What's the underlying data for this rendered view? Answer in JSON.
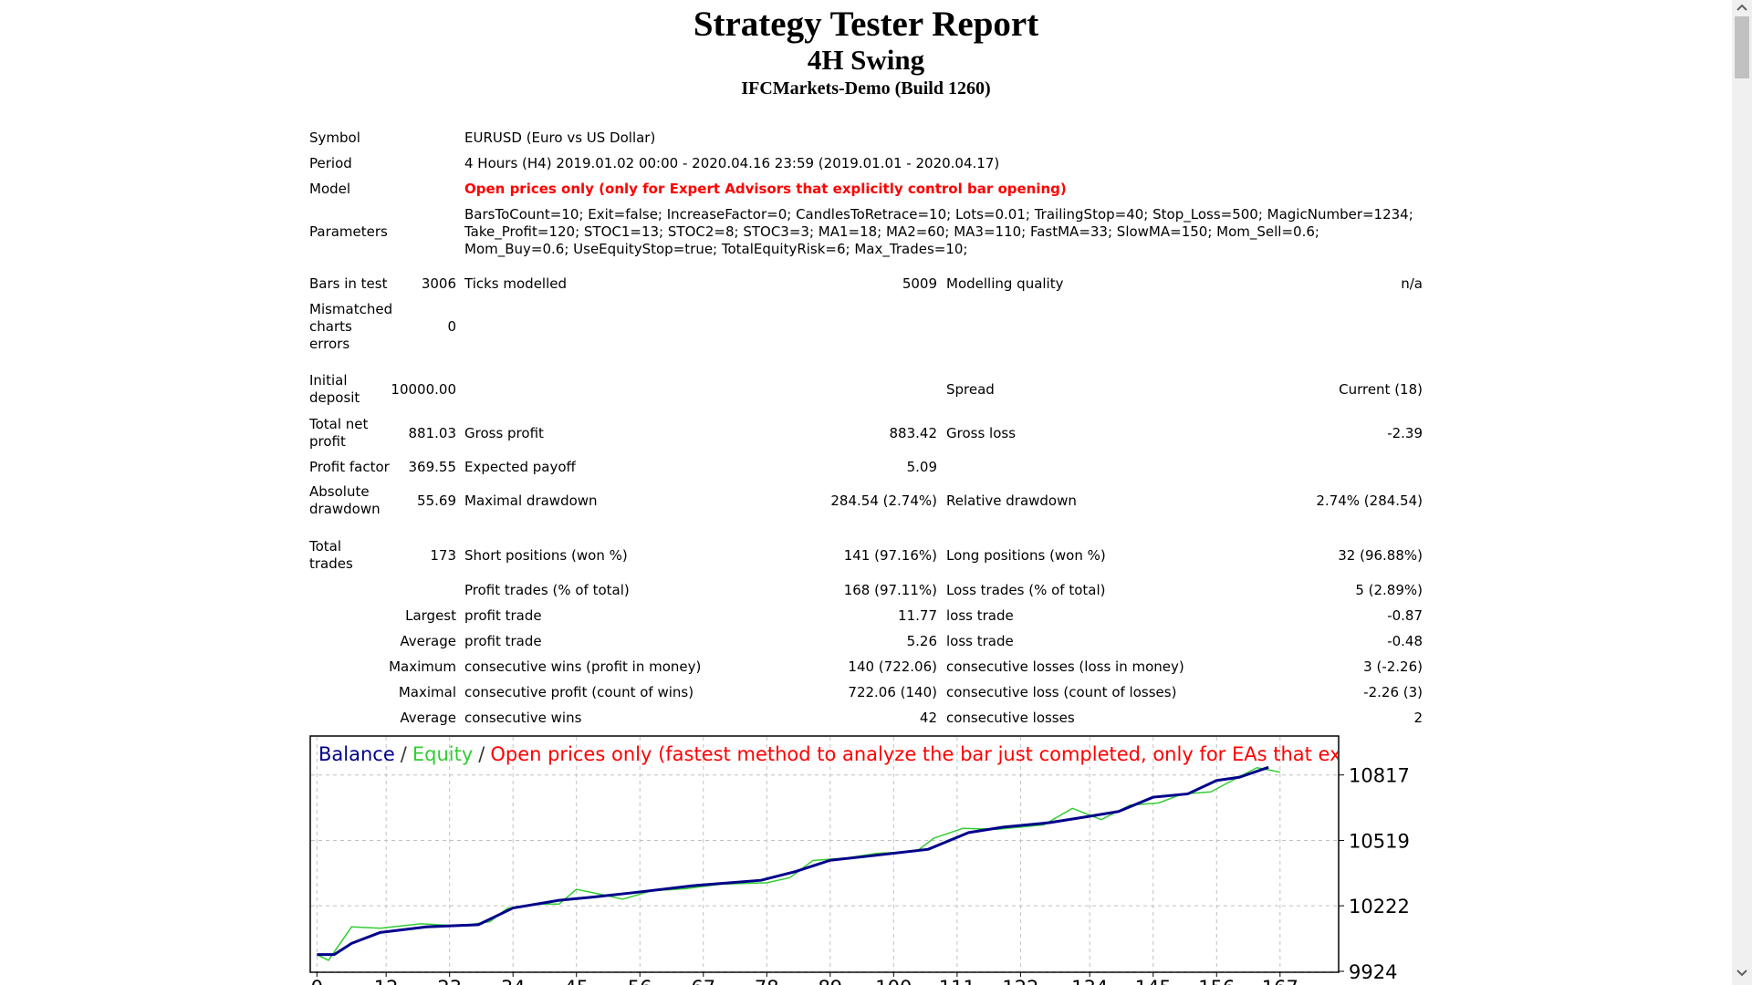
{
  "header": {
    "title": "Strategy Tester Report",
    "subtitle": "4H Swing",
    "server": "IFCMarkets-Demo (Build 1260)"
  },
  "table": {
    "rows": [
      [
        "Symbol",
        "EURUSD (Euro vs US Dollar)"
      ],
      [
        "Period",
        "4 Hours (H4) 2019.01.02 00:00 - 2020.04.16 23:59 (2019.01.01 - 2020.04.17)"
      ],
      [
        "Model",
        "Open prices only (only for Expert Advisors that explicitly control bar opening)"
      ],
      [
        "Parameters",
        "BarsToCount=10; Exit=false; IncreaseFactor=0; CandlesToRetrace=10; Lots=0.01; TrailingStop=40; Stop_Loss=500; MagicNumber=1234; Take_Profit=120; STOC1=13; STOC2=8; STOC3=3; MA1=18; MA2=60; MA3=110; FastMA=33; SlowMA=150; Mom_Sell=0.6; Mom_Buy=0.6; UseEquityStop=true; TotalEquityRisk=6; Max_Trades=10;"
      ],
      [
        "Bars in test",
        "3006",
        "Ticks modelled",
        "5009",
        "Modelling quality",
        "n/a"
      ],
      [
        "Mismatched charts errors",
        "0"
      ],
      [
        "Initial deposit",
        "10000.00",
        "Spread",
        "Current (18)"
      ],
      [
        "Total net profit",
        "881.03",
        "Gross profit",
        "883.42",
        "Gross loss",
        "-2.39"
      ],
      [
        "Profit factor",
        "369.55",
        "Expected payoff",
        "5.09"
      ],
      [
        "Absolute drawdown",
        "55.69",
        "Maximal drawdown",
        "284.54 (2.74%)",
        "Relative drawdown",
        "2.74% (284.54)"
      ],
      [
        "Total trades",
        "173",
        "Short positions (won %)",
        "141 (97.16%)",
        "Long positions (won %)",
        "32 (96.88%)"
      ],
      [
        "Profit trades (% of total)",
        "168 (97.11%)",
        "Loss trades (% of total)",
        "5 (2.89%)"
      ],
      [
        "Largest",
        "profit trade",
        "11.77",
        "loss trade",
        "-0.87"
      ],
      [
        "Average",
        "profit trade",
        "5.26",
        "loss trade",
        "-0.48"
      ],
      [
        "Maximum",
        "consecutive wins (profit in money)",
        "140 (722.06)",
        "consecutive losses (loss in money)",
        "3 (-2.26)"
      ],
      [
        "Maximal",
        "consecutive profit (count of wins)",
        "722.06 (140)",
        "consecutive loss (count of losses)",
        "-2.26 (3)"
      ],
      [
        "Average",
        "consecutive wins",
        "42",
        "consecutive losses",
        "2"
      ]
    ]
  },
  "chart": {
    "type": "line",
    "legend_separator": "/",
    "legend_note": "Open prices only (fastest method to analyze the bar just completed, only for EAs that explicitly control bar opening)",
    "note_color": "#ff0000",
    "xlim": [
      -1,
      177
    ],
    "ylim": [
      9924,
      10990
    ],
    "xticks": [
      0,
      12,
      23,
      34,
      45,
      56,
      67,
      78,
      89,
      100,
      111,
      122,
      134,
      145,
      156,
      167
    ],
    "yticks": [
      9924,
      10222,
      10519,
      10817
    ],
    "grid": true,
    "series": [
      {
        "name": "Balance",
        "color": "#00008b",
        "x": [
          0,
          3,
          6,
          11,
          19,
          28,
          34,
          42,
          48,
          55,
          65,
          77,
          83,
          89,
          96,
          106,
          113,
          119,
          127,
          133,
          139,
          145,
          151,
          156,
          160,
          165
        ],
        "values": [
          10000,
          10000,
          10051,
          10101,
          10126,
          10136,
          10212,
          10247,
          10262,
          10282,
          10313,
          10338,
          10378,
          10429,
          10449,
          10479,
          10555,
          10580,
          10600,
          10625,
          10651,
          10716,
          10731,
          10792,
          10807,
          10852
        ]
      },
      {
        "name": "Equity",
        "color": "#32cd32",
        "x": [
          0,
          2,
          6,
          11,
          18,
          25,
          30,
          33,
          38,
          42,
          45,
          50,
          53,
          58,
          64,
          70,
          78,
          82,
          86,
          92,
          97,
          104,
          107,
          112,
          118,
          126,
          131,
          136,
          141,
          146,
          150,
          155,
          160,
          163,
          167
        ],
        "values": [
          10000,
          9974,
          10126,
          10120,
          10140,
          10130,
          10150,
          10210,
          10230,
          10230,
          10297,
          10270,
          10252,
          10290,
          10300,
          10320,
          10327,
          10350,
          10428,
          10440,
          10460,
          10470,
          10530,
          10574,
          10570,
          10590,
          10665,
          10614,
          10680,
          10690,
          10730,
          10740,
          10810,
          10850,
          10830
        ]
      }
    ]
  }
}
